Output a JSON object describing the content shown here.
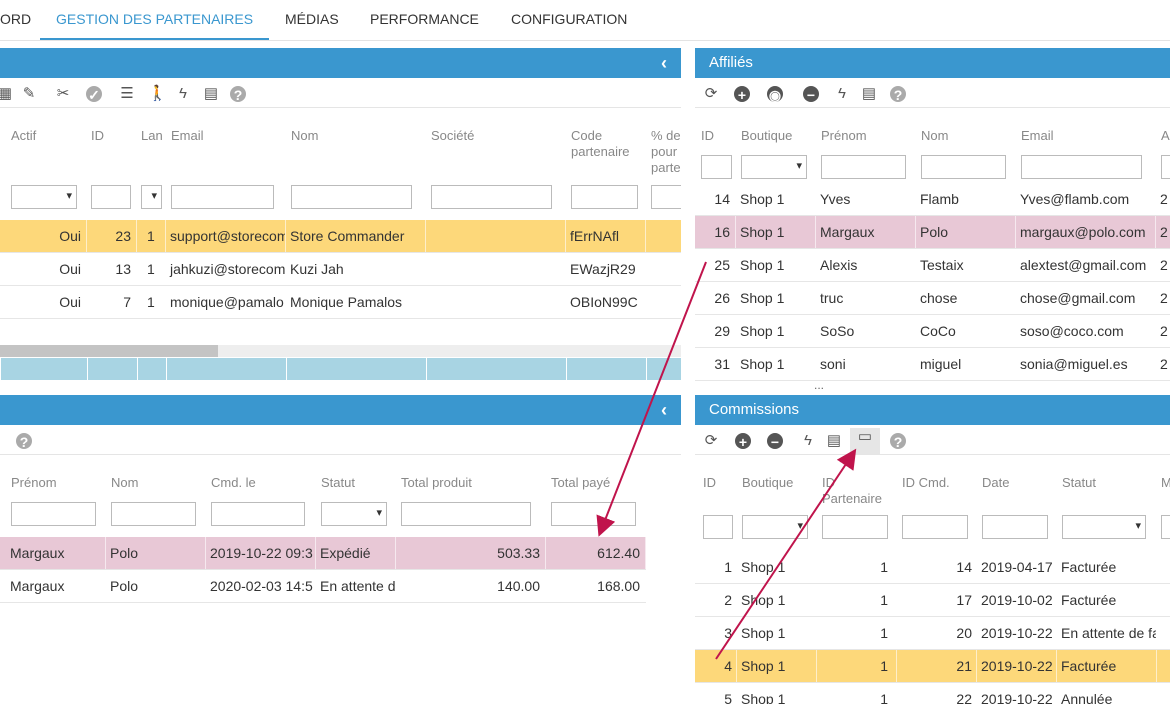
{
  "nav": {
    "tabs": [
      {
        "label": "ORD"
      },
      {
        "label": "GESTION DES PARTENAIRES",
        "active": true
      },
      {
        "label": "MÉDIAS"
      },
      {
        "label": "PERFORMANCE"
      },
      {
        "label": "CONFIGURATION"
      }
    ]
  },
  "colors": {
    "header": "#3a97cf",
    "selected_row": "#fdd87a",
    "linked_row": "#e8c8d6",
    "arrow": "#c0144c"
  },
  "partners": {
    "title": "",
    "toolbar": [
      "grid-icon",
      "edit-icon",
      "unlink-icon",
      "check-icon",
      "list-icon",
      "walker-icon",
      "lightning-icon",
      "export-icon",
      "help-icon"
    ],
    "columns": [
      "Actif",
      "ID",
      "Lan",
      "Email",
      "Nom",
      "Société",
      "Code partenaire",
      "% de pour parte"
    ],
    "rows": [
      {
        "cells": [
          "Oui",
          "23",
          "1",
          "support@storecom",
          "Store Commander",
          "",
          "fErrNAfl",
          ""
        ],
        "state": "selected"
      },
      {
        "cells": [
          "Oui",
          "13",
          "1",
          "jahkuzi@storecom",
          "Kuzi Jah",
          "",
          "EWazjR29",
          ""
        ]
      },
      {
        "cells": [
          "Oui",
          "7",
          "1",
          "monique@pamalo",
          "Monique Pamalos",
          "",
          "OBIoN99C",
          ""
        ]
      }
    ]
  },
  "affiliates": {
    "title": "Affiliés",
    "toolbar": [
      "refresh-icon",
      "add-icon",
      "globe-icon",
      "remove-icon",
      "lightning-icon",
      "export-icon",
      "help-icon"
    ],
    "columns": [
      "ID",
      "Boutique",
      "Prénom",
      "Nom",
      "Email",
      "A"
    ],
    "rows": [
      {
        "cells": [
          "14",
          "Shop 1",
          "Yves",
          "Flamb",
          "Yves@flamb.com",
          "2"
        ]
      },
      {
        "cells": [
          "16",
          "Shop 1",
          "Margaux",
          "Polo",
          "margaux@polo.com",
          "2"
        ],
        "state": "linked"
      },
      {
        "cells": [
          "25",
          "Shop 1",
          "Alexis",
          "Testaix",
          "alextest@gmail.com",
          "2"
        ]
      },
      {
        "cells": [
          "26",
          "Shop 1",
          "truc",
          "chose",
          "chose@gmail.com",
          "2"
        ]
      },
      {
        "cells": [
          "29",
          "Shop 1",
          "SoSo",
          "CoCo",
          "soso@coco.com",
          "2"
        ]
      },
      {
        "cells": [
          "31",
          "Shop 1",
          "soni",
          "miguel",
          "sonia@miguel.es",
          "2"
        ]
      }
    ],
    "more": "..."
  },
  "orders": {
    "title": "",
    "toolbar": [
      "help-icon"
    ],
    "columns": [
      "Prénom",
      "Nom",
      "Cmd. le",
      "Statut",
      "Total produit",
      "Total payé"
    ],
    "rows": [
      {
        "cells": [
          "Margaux",
          "Polo",
          "2019-10-22 09:3",
          "Expédié",
          "503.33",
          "612.40"
        ],
        "state": "linked"
      },
      {
        "cells": [
          "Margaux",
          "Polo",
          "2020-02-03 14:5",
          "En attente d",
          "140.00",
          "168.00"
        ]
      }
    ]
  },
  "commissions": {
    "title": "Commissions",
    "toolbar": [
      "refresh-icon",
      "add-icon",
      "remove-icon",
      "lightning-icon",
      "export-icon",
      "invoice-icon",
      "help-icon"
    ],
    "columns": [
      "ID",
      "Boutique",
      "ID Partenaire",
      "ID Cmd.",
      "Date",
      "Statut",
      "M"
    ],
    "rows": [
      {
        "cells": [
          "1",
          "Shop 1",
          "1",
          "14",
          "2019-04-17",
          "Facturée",
          ""
        ]
      },
      {
        "cells": [
          "2",
          "Shop 1",
          "1",
          "17",
          "2019-10-02",
          "Facturée",
          ""
        ]
      },
      {
        "cells": [
          "3",
          "Shop 1",
          "1",
          "20",
          "2019-10-22",
          "En attente de fa",
          ""
        ]
      },
      {
        "cells": [
          "4",
          "Shop 1",
          "1",
          "21",
          "2019-10-22",
          "Facturée",
          ""
        ],
        "state": "selected"
      },
      {
        "cells": [
          "5",
          "Shop 1",
          "1",
          "22",
          "2019-10-22",
          "Annulée",
          ""
        ]
      }
    ]
  }
}
